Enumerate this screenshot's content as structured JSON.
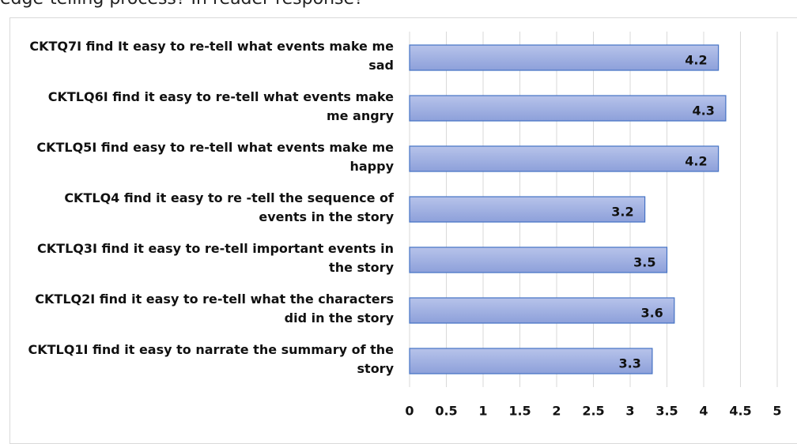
{
  "header_text": "edge-telling process? In reader response?",
  "chart_data": {
    "type": "barh",
    "categories": [
      "CKTQ7I find It easy to re-tell what events make me sad",
      "CKTLQ6I find it easy to re-tell what events make me angry",
      "CKTLQ5I find easy to re-tell what events make me happy",
      "CKTLQ4 find it easy to re -tell the sequence of events in the story",
      "CKTLQ3I find it easy to re-tell important events in the story",
      "CKTLQ2I find it easy to re-tell what the characters did in the story",
      "CKTLQ1I find it easy to narrate the summary of the story"
    ],
    "values": [
      4.2,
      4.3,
      4.2,
      3.2,
      3.5,
      3.6,
      3.3
    ],
    "color": "#9fb0e2",
    "edge_color": "#4472c4",
    "xlim": [
      0,
      5
    ],
    "xticks": [
      0,
      0.5,
      1,
      1.5,
      2,
      2.5,
      3,
      3.5,
      4,
      4.5,
      5
    ],
    "grid": true
  }
}
